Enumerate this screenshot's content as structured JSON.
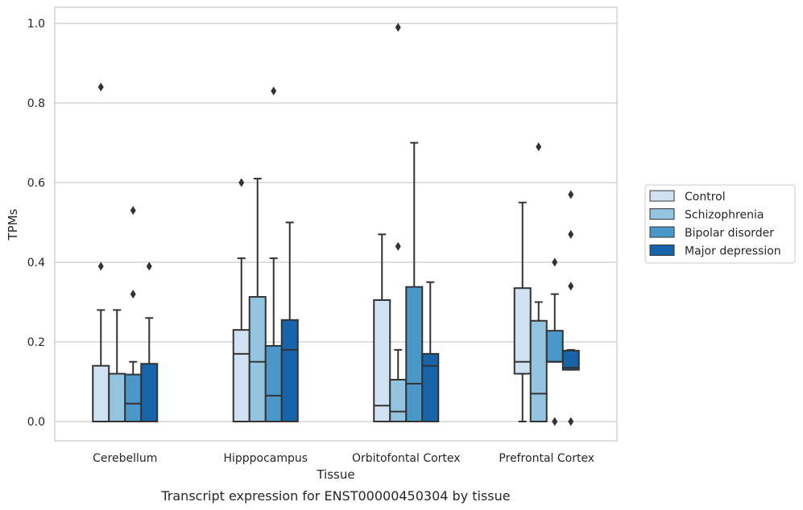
{
  "chart_data": {
    "type": "boxplot",
    "caption": "Transcript expression for ENST00000450304 by tissue",
    "xlabel": "Tissue",
    "ylabel": "TPMs",
    "ylim": [
      -0.05,
      1.04
    ],
    "yticks": [
      "0.0",
      "0.2",
      "0.4",
      "0.6",
      "0.8",
      "1.0"
    ],
    "ytick_values": [
      0,
      0.2,
      0.4,
      0.6,
      0.8,
      1.0
    ],
    "grid": "horizontal",
    "legend_position": "right",
    "categories": [
      "Cerebellum",
      "Hipppocampus",
      "Orbitofontal Cortex",
      "Prefrontal Cortex"
    ],
    "series": [
      {
        "name": "Control",
        "color": "#d0e1f2",
        "boxes": [
          {
            "whislo": 0,
            "q1": 0,
            "med": 0,
            "q3": 0.14,
            "whishi": 0.28,
            "fliers": [
              0.39,
              0.84
            ]
          },
          {
            "whislo": 0,
            "q1": 0,
            "med": 0.17,
            "q3": 0.23,
            "whishi": 0.41,
            "fliers": [
              0.6
            ]
          },
          {
            "whislo": 0,
            "q1": 0,
            "med": 0.04,
            "q3": 0.305,
            "whishi": 0.47,
            "fliers": []
          },
          {
            "whislo": 0,
            "q1": 0.12,
            "med": 0.15,
            "q3": 0.335,
            "whishi": 0.55,
            "fliers": []
          }
        ]
      },
      {
        "name": "Schizophrenia",
        "color": "#94c4df",
        "boxes": [
          {
            "whislo": 0,
            "q1": 0,
            "med": 0,
            "q3": 0.12,
            "whishi": 0.28,
            "fliers": []
          },
          {
            "whislo": 0,
            "q1": 0,
            "med": 0.15,
            "q3": 0.313,
            "whishi": 0.61,
            "fliers": []
          },
          {
            "whislo": 0,
            "q1": 0,
            "med": 0.025,
            "q3": 0.105,
            "whishi": 0.18,
            "fliers": [
              0.44,
              0.99
            ]
          },
          {
            "whislo": 0,
            "q1": 0,
            "med": 0.07,
            "q3": 0.253,
            "whishi": 0.3,
            "fliers": [
              0.69
            ]
          }
        ]
      },
      {
        "name": "Bipolar disorder",
        "color": "#4a98c9",
        "boxes": [
          {
            "whislo": 0,
            "q1": 0,
            "med": 0.045,
            "q3": 0.118,
            "whishi": 0.15,
            "fliers": [
              0.32,
              0.53
            ]
          },
          {
            "whislo": 0,
            "q1": 0,
            "med": 0.065,
            "q3": 0.19,
            "whishi": 0.41,
            "fliers": [
              0.83
            ]
          },
          {
            "whislo": 0,
            "q1": 0,
            "med": 0.095,
            "q3": 0.338,
            "whishi": 0.7,
            "fliers": []
          },
          {
            "whislo": 0.15,
            "q1": 0.15,
            "med": 0.15,
            "q3": 0.228,
            "whishi": 0.32,
            "fliers": [
              0,
              0.4
            ]
          }
        ]
      },
      {
        "name": "Major depression",
        "color": "#1764ab",
        "boxes": [
          {
            "whislo": 0,
            "q1": 0,
            "med": 0,
            "q3": 0.145,
            "whishi": 0.26,
            "fliers": [
              0.39
            ]
          },
          {
            "whislo": 0,
            "q1": 0,
            "med": 0.18,
            "q3": 0.255,
            "whishi": 0.5,
            "fliers": []
          },
          {
            "whislo": 0,
            "q1": 0,
            "med": 0.14,
            "q3": 0.17,
            "whishi": 0.35,
            "fliers": []
          },
          {
            "whislo": 0.13,
            "q1": 0.13,
            "med": 0.135,
            "q3": 0.178,
            "whishi": 0.18,
            "fliers": [
              0,
              0.34,
              0.47,
              0.57
            ]
          }
        ]
      }
    ]
  }
}
